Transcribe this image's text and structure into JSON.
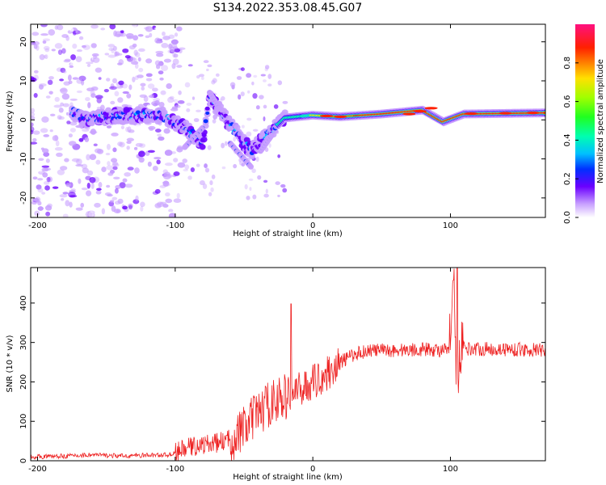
{
  "title": "S134.2022.353.08.45.G07",
  "colors": {
    "snr_line": "#ee2222",
    "axis": "#000000",
    "spectrogram_background": "#ffffff"
  },
  "chart_data": [
    {
      "type": "heatmap",
      "name": "spectrogram",
      "xlabel": "Height of straight line (km)",
      "ylabel": "Frequency (Hz)",
      "xlim": [
        -205,
        169
      ],
      "ylim": [
        -25,
        24.5
      ],
      "x_ticks": [
        -200,
        -100,
        0,
        100
      ],
      "y_ticks": [
        -20,
        -10,
        0,
        10,
        20
      ],
      "colorbar": {
        "label": "Normalized spectral amplitude",
        "range": [
          0,
          1
        ],
        "ticks": [
          "0.0",
          "0.2",
          "0.4",
          "0.6",
          "0.8"
        ]
      },
      "ridge": {
        "description_points": [
          {
            "x": -170,
            "f": 0.5
          },
          {
            "x": -140,
            "f": 1.0
          },
          {
            "x": -110,
            "f": 1.2
          },
          {
            "x": -95,
            "f": -1.5
          },
          {
            "x": -80,
            "f": -6
          },
          {
            "x": -75,
            "f": 6
          },
          {
            "x": -65,
            "f": 1
          },
          {
            "x": -45,
            "f": -8
          },
          {
            "x": -30,
            "f": -3
          },
          {
            "x": -20,
            "f": 0.5
          },
          {
            "x": 0,
            "f": 1.2
          },
          {
            "x": 20,
            "f": 0.8
          },
          {
            "x": 50,
            "f": 1.5
          },
          {
            "x": 80,
            "f": 2.5
          },
          {
            "x": 95,
            "f": -0.5
          },
          {
            "x": 110,
            "f": 1.5
          },
          {
            "x": 169,
            "f": 1.8
          }
        ]
      }
    },
    {
      "type": "line",
      "name": "snr",
      "xlabel": "Height of straight line (km)",
      "ylabel": "SNR (10 * v/v)",
      "xlim": [
        -205,
        169
      ],
      "ylim": [
        0,
        490
      ],
      "x_ticks": [
        -200,
        -100,
        0,
        100
      ],
      "y_ticks": [
        0,
        100,
        200,
        300,
        400
      ],
      "series": [
        {
          "x": [
            -205,
            -180,
            -160,
            -140,
            -120,
            -105,
            -100,
            -90,
            -80,
            -70,
            -60,
            -50,
            -40,
            -30,
            -20,
            -15,
            -10,
            0,
            10,
            20,
            30,
            40,
            60,
            80,
            100,
            103,
            105,
            107,
            110,
            130,
            150,
            169
          ],
          "y": [
            10,
            12,
            15,
            12,
            14,
            15,
            20,
            35,
            40,
            45,
            55,
            80,
            120,
            150,
            160,
            170,
            180,
            200,
            220,
            250,
            270,
            280,
            280,
            283,
            278,
            420,
            160,
            300,
            285,
            283,
            282,
            280
          ],
          "spikes": [
            {
              "x": -16,
              "y": 398
            },
            {
              "x": 105,
              "y": 490
            },
            {
              "x": 102,
              "y": 458
            }
          ]
        }
      ]
    }
  ]
}
